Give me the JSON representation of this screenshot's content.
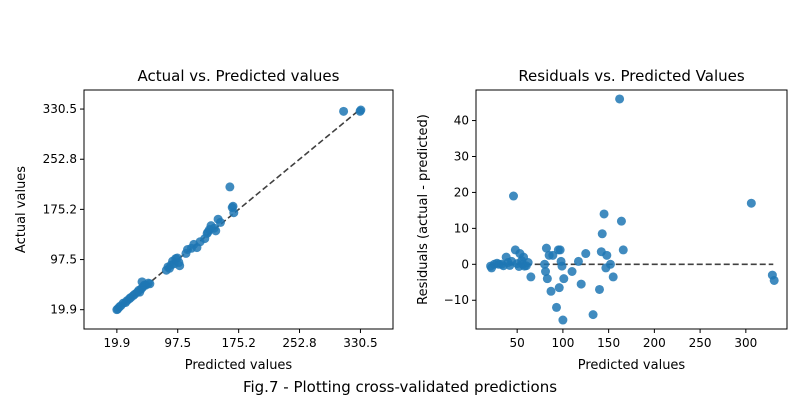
{
  "figure": {
    "caption": "Fig.7 - Plotting cross-validated predictions"
  },
  "colors": {
    "point": "#1f77b4",
    "reference_line": "#404040",
    "axis": "#000000"
  },
  "chart_data": [
    {
      "type": "scatter",
      "title": "Actual vs. Predicted values",
      "xlabel": "Predicted values",
      "ylabel": "Actual values",
      "xlim": [
        -22,
        372
      ],
      "ylim": [
        -10,
        360
      ],
      "x_ticks": [
        19.9,
        97.5,
        175.2,
        252.8,
        330.5
      ],
      "x_tick_labels": [
        "19.9",
        "97.5",
        "175.2",
        "252.8",
        "330.5"
      ],
      "y_ticks": [
        19.9,
        97.5,
        175.2,
        252.8,
        330.5
      ],
      "y_tick_labels": [
        "19.9",
        "97.5",
        "175.2",
        "252.8",
        "330.5"
      ],
      "reference_line": {
        "style": "dashed",
        "from": [
          19.9,
          19.9
        ],
        "to": [
          330.5,
          330.5
        ]
      },
      "points": [
        [
          19.9,
          19.9
        ],
        [
          21,
          21
        ],
        [
          23,
          24
        ],
        [
          25,
          26
        ],
        [
          28,
          30
        ],
        [
          31,
          31
        ],
        [
          33,
          34
        ],
        [
          36,
          37
        ],
        [
          38,
          39
        ],
        [
          41,
          42
        ],
        [
          43,
          44
        ],
        [
          46,
          47
        ],
        [
          48,
          50
        ],
        [
          49,
          47
        ],
        [
          51,
          52
        ],
        [
          53,
          55
        ],
        [
          55,
          58
        ],
        [
          57,
          58
        ],
        [
          60,
          61
        ],
        [
          62,
          60
        ],
        [
          52,
          63
        ],
        [
          83,
          81
        ],
        [
          85,
          86
        ],
        [
          87,
          84
        ],
        [
          89,
          89
        ],
        [
          91,
          95
        ],
        [
          93,
          91
        ],
        [
          95,
          99
        ],
        [
          97,
          100
        ],
        [
          99,
          93
        ],
        [
          100,
          88
        ],
        [
          108,
          107
        ],
        [
          110,
          113
        ],
        [
          115,
          115
        ],
        [
          118,
          121
        ],
        [
          122,
          116
        ],
        [
          126,
          125
        ],
        [
          132,
          130
        ],
        [
          135,
          138
        ],
        [
          136,
          140
        ],
        [
          138,
          144
        ],
        [
          140,
          150
        ],
        [
          144,
          146
        ],
        [
          146,
          142
        ],
        [
          149,
          160
        ],
        [
          152,
          155
        ],
        [
          164,
          210
        ],
        [
          167,
          178
        ],
        [
          168,
          180
        ],
        [
          169,
          170
        ],
        [
          309,
          327
        ],
        [
          330,
          327
        ],
        [
          331,
          329
        ]
      ]
    },
    {
      "type": "scatter",
      "title": "Residuals vs. Predicted Values",
      "xlabel": "Predicted values",
      "ylabel": "Residuals (actual - predicted)",
      "xlim": [
        5,
        345
      ],
      "ylim": [
        -18,
        48.5
      ],
      "x_ticks": [
        50,
        100,
        150,
        200,
        250,
        300
      ],
      "x_tick_labels": [
        "50",
        "100",
        "150",
        "200",
        "250",
        "300"
      ],
      "y_ticks": [
        -10,
        0,
        10,
        20,
        30,
        40
      ],
      "y_tick_labels": [
        "−10",
        "0",
        "10",
        "20",
        "30",
        "40"
      ],
      "reference_line": {
        "style": "dashed",
        "from": [
          20,
          0
        ],
        "to": [
          330,
          0
        ]
      },
      "points": [
        [
          21,
          -0.5
        ],
        [
          22,
          -1
        ],
        [
          25,
          0
        ],
        [
          28,
          0.3
        ],
        [
          30,
          0
        ],
        [
          33,
          0
        ],
        [
          35,
          -0.4
        ],
        [
          38,
          2
        ],
        [
          40,
          0.5
        ],
        [
          42,
          -0.3
        ],
        [
          44,
          0.8
        ],
        [
          46,
          19
        ],
        [
          48,
          4
        ],
        [
          50,
          0.2
        ],
        [
          52,
          -0.6
        ],
        [
          53,
          3
        ],
        [
          55,
          1
        ],
        [
          56,
          0
        ],
        [
          57,
          2
        ],
        [
          58,
          -0.5
        ],
        [
          60,
          -0.4
        ],
        [
          62,
          0.5
        ],
        [
          65,
          -3.5
        ],
        [
          80,
          0
        ],
        [
          81,
          -2
        ],
        [
          82,
          4.5
        ],
        [
          83,
          -4
        ],
        [
          85,
          2.5
        ],
        [
          87,
          -7.5
        ],
        [
          89,
          2.5
        ],
        [
          93,
          -12
        ],
        [
          95,
          4
        ],
        [
          96,
          -6.5
        ],
        [
          97,
          4
        ],
        [
          98,
          0.8
        ],
        [
          99,
          -0.5
        ],
        [
          100,
          -15.5
        ],
        [
          101,
          -4
        ],
        [
          110,
          -2
        ],
        [
          117,
          0.8
        ],
        [
          120,
          -5.5
        ],
        [
          125,
          3
        ],
        [
          133,
          -14
        ],
        [
          140,
          -7
        ],
        [
          142,
          3.5
        ],
        [
          143,
          8.5
        ],
        [
          145,
          14
        ],
        [
          147,
          -1
        ],
        [
          148,
          2.5
        ],
        [
          152,
          0
        ],
        [
          155,
          -3.5
        ],
        [
          162,
          46
        ],
        [
          164,
          12
        ],
        [
          166,
          4
        ],
        [
          306,
          17
        ],
        [
          329,
          -3
        ],
        [
          331,
          -4.5
        ]
      ]
    }
  ]
}
